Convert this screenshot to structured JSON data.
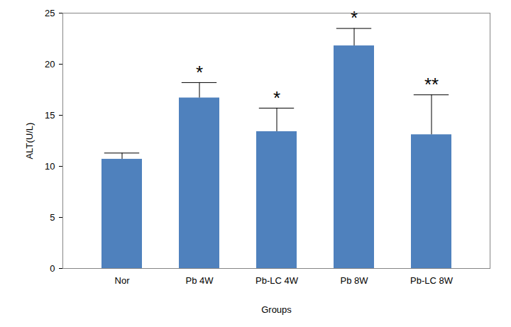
{
  "chart_data": {
    "type": "bar",
    "x_label": "Groups",
    "y_label": "ALT(U/L)",
    "categories": [
      "Nor",
      "Pb 4W",
      "Pb-LC 4W",
      "Pb 8W",
      "Pb-LC 8W"
    ],
    "values": [
      10.7,
      16.7,
      13.4,
      21.8,
      13.1
    ],
    "errors": [
      0.6,
      1.5,
      2.3,
      1.7,
      3.9
    ],
    "significance": [
      null,
      "*",
      "*",
      "*",
      "**"
    ],
    "color": "#4f81bd",
    "ylim": [
      0,
      25
    ],
    "yticks": [
      0,
      5,
      10,
      15,
      20,
      25
    ],
    "grid": false
  }
}
